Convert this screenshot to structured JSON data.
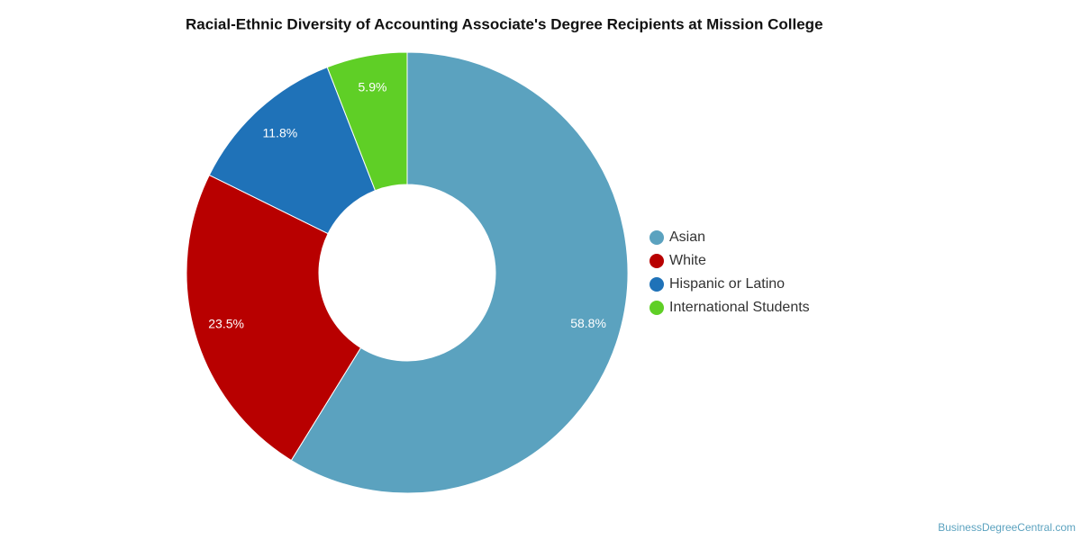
{
  "chart_data": {
    "type": "donut",
    "title": "Racial-Ethnic Diversity of Accounting Associate's Degree Recipients at Mission College",
    "categories": [
      "Asian",
      "White",
      "Hispanic or Latino",
      "International Students"
    ],
    "values": [
      58.8,
      23.5,
      11.8,
      5.9
    ],
    "value_labels": [
      "58.8%",
      "23.5%",
      "11.8%",
      "5.9%"
    ],
    "colors": [
      "#5ba2bf",
      "#b80000",
      "#1f72b8",
      "#5fcf26"
    ],
    "legend": "right",
    "credit": "BusinessDegreeCentral.com"
  }
}
